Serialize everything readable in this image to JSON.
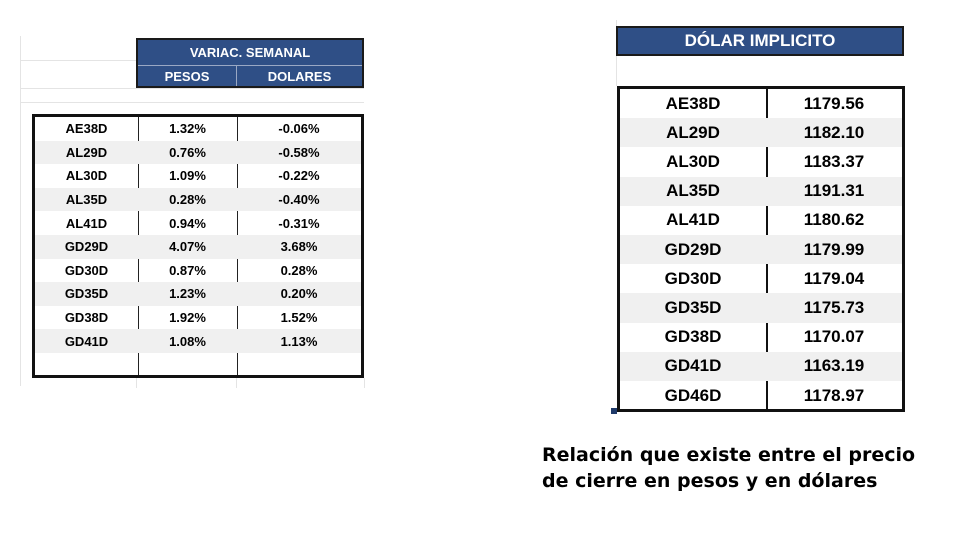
{
  "left_table": {
    "group_header": "VARIAC. SEMANAL",
    "col_pesos": "PESOS",
    "col_dolares": "DOLARES",
    "rows": [
      {
        "ticker": "AE38D",
        "pesos": "1.32%",
        "dolares": "-0.06%"
      },
      {
        "ticker": "AL29D",
        "pesos": "0.76%",
        "dolares": "-0.58%"
      },
      {
        "ticker": "AL30D",
        "pesos": "1.09%",
        "dolares": "-0.22%"
      },
      {
        "ticker": "AL35D",
        "pesos": "0.28%",
        "dolares": "-0.40%"
      },
      {
        "ticker": "AL41D",
        "pesos": "0.94%",
        "dolares": "-0.31%"
      },
      {
        "ticker": "GD29D",
        "pesos": "4.07%",
        "dolares": "3.68%"
      },
      {
        "ticker": "GD30D",
        "pesos": "0.87%",
        "dolares": "0.28%"
      },
      {
        "ticker": "GD35D",
        "pesos": "1.23%",
        "dolares": "0.20%"
      },
      {
        "ticker": "GD38D",
        "pesos": "1.92%",
        "dolares": "1.52%"
      },
      {
        "ticker": "GD41D",
        "pesos": "1.08%",
        "dolares": "1.13%"
      },
      {
        "ticker": "",
        "pesos": "",
        "dolares": ""
      }
    ]
  },
  "right_table": {
    "header": "DÓLAR IMPLICITO",
    "rows": [
      {
        "ticker": "AE38D",
        "value": "1179.56"
      },
      {
        "ticker": "AL29D",
        "value": "1182.10"
      },
      {
        "ticker": "AL30D",
        "value": "1183.37"
      },
      {
        "ticker": "AL35D",
        "value": "1191.31"
      },
      {
        "ticker": "AL41D",
        "value": "1180.62"
      },
      {
        "ticker": "GD29D",
        "value": "1179.99"
      },
      {
        "ticker": "GD30D",
        "value": "1179.04"
      },
      {
        "ticker": "GD35D",
        "value": "1175.73"
      },
      {
        "ticker": "GD38D",
        "value": "1170.07"
      },
      {
        "ticker": "GD41D",
        "value": "1163.19"
      },
      {
        "ticker": "GD46D",
        "value": "1178.97"
      }
    ]
  },
  "caption": {
    "line1": "Relación que existe entre el precio",
    "line2": "de cierre en pesos y en dólares"
  },
  "colors": {
    "header_bg": "#2f4f86",
    "alt_row": "#f0f0f0"
  }
}
